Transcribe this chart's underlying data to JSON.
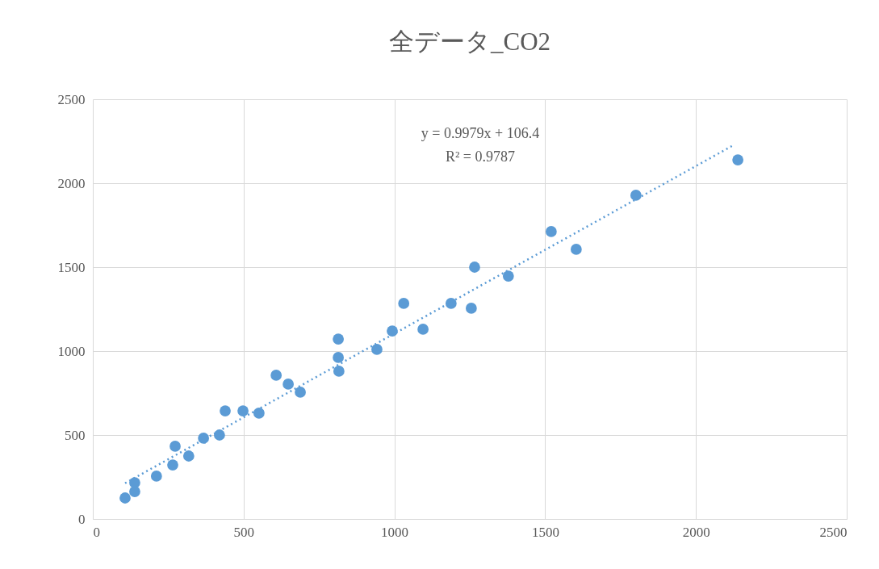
{
  "chart_data": {
    "type": "scatter",
    "title": "全データ_CO2",
    "series": [
      {
        "color": "#5b9bd5",
        "marker": "circle",
        "x": [
          107,
          139,
          139,
          211,
          265,
          273,
          318,
          367,
          420,
          439,
          498,
          551,
          608,
          648,
          688,
          814,
          814,
          816,
          942,
          993,
          1031,
          1095,
          1188,
          1255,
          1266,
          1378,
          1520,
          1603,
          1801,
          2139
        ],
        "values": [
          125,
          216,
          163,
          255,
          322,
          433,
          375,
          481,
          500,
          644,
          644,
          630,
          856,
          803,
          755,
          1072,
          962,
          880,
          1010,
          1120,
          1284,
          1130,
          1284,
          1255,
          1500,
          1447,
          1712,
          1606,
          1928,
          2139
        ]
      },
      {
        "type": "line",
        "color": "#5b9bd5",
        "line_style": "dotted",
        "x": [
          107,
          2123
        ],
        "values": [
          213,
          2225
        ]
      }
    ],
    "xlim": [
      0,
      2500
    ],
    "xticks": [
      0,
      500,
      1000,
      1500,
      2000,
      2500
    ],
    "ylim": [
      0,
      2500
    ],
    "yticks": [
      0,
      500,
      1000,
      1500,
      2000,
      2500
    ],
    "grid": true,
    "legend": false,
    "annotations": [
      "y = 0.9979x + 106.4",
      "R² = 0.9787"
    ]
  }
}
